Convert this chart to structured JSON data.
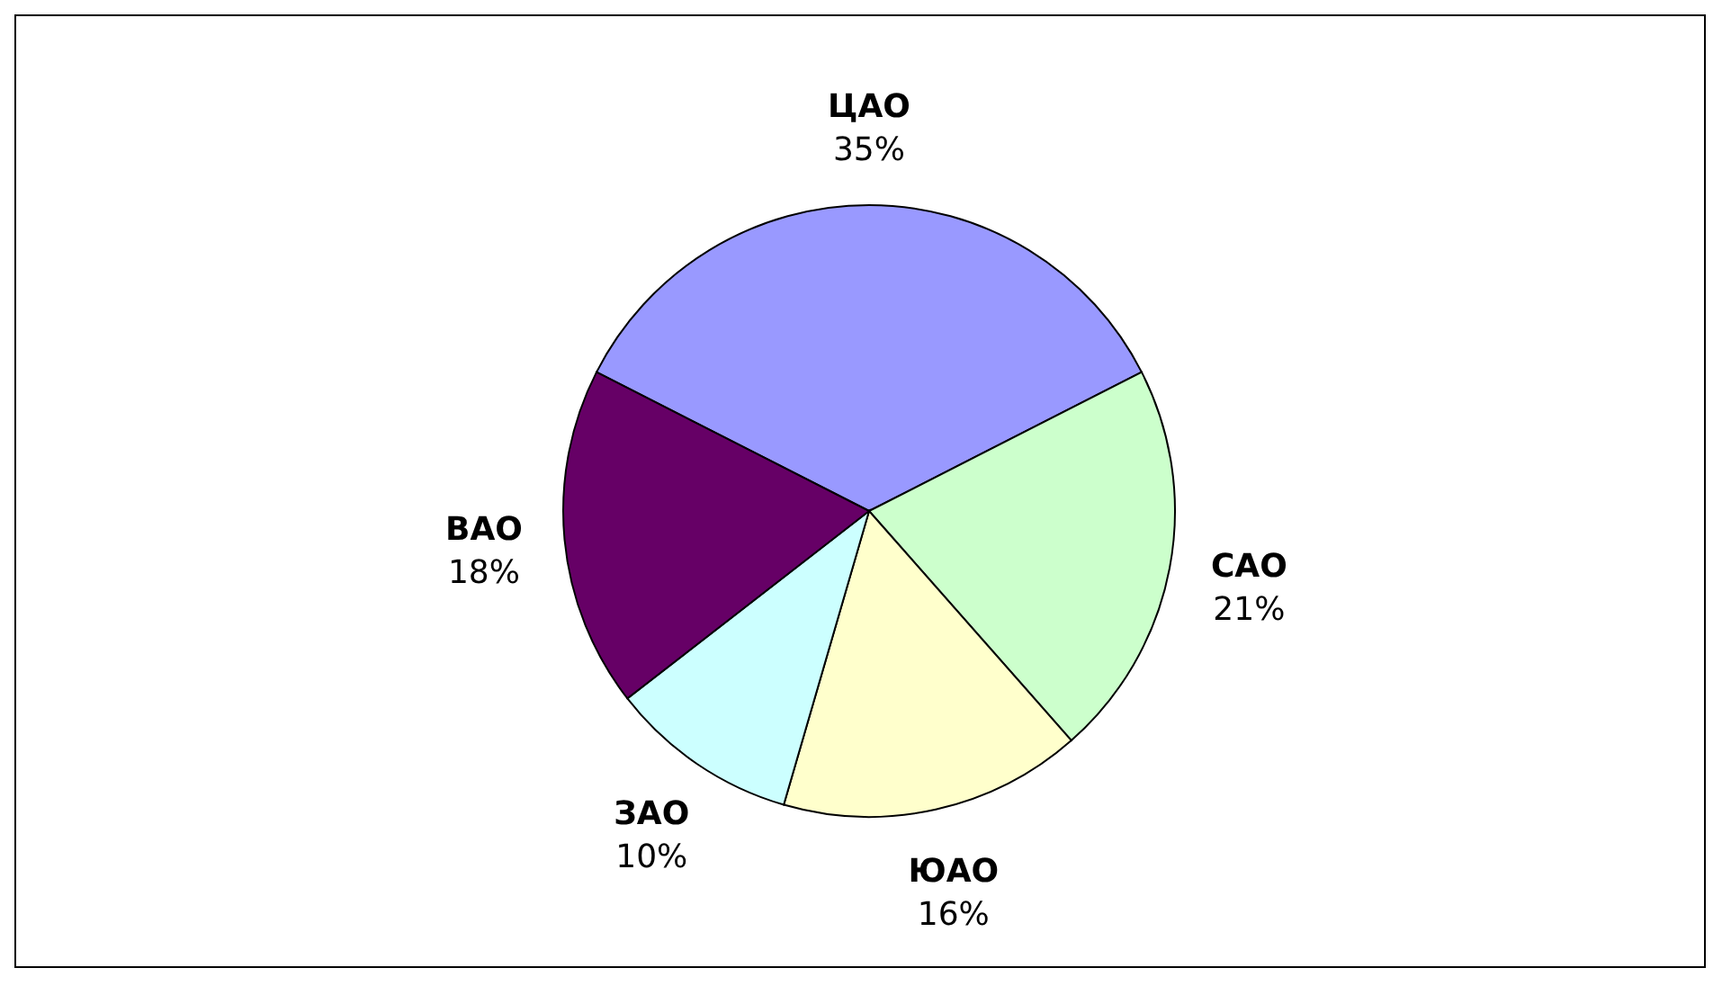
{
  "chart_data": {
    "type": "pie",
    "categories": [
      "ЦАО",
      "САО",
      "ЮАО",
      "ЗАО",
      "ВАО"
    ],
    "values": [
      35,
      21,
      16,
      10,
      18
    ],
    "value_labels": [
      "35%",
      "21%",
      "16%",
      "10%",
      "18%"
    ],
    "colors": [
      "#9999ff",
      "#ccffcc",
      "#ffffcc",
      "#ccffff",
      "#660066"
    ],
    "legend": false
  }
}
